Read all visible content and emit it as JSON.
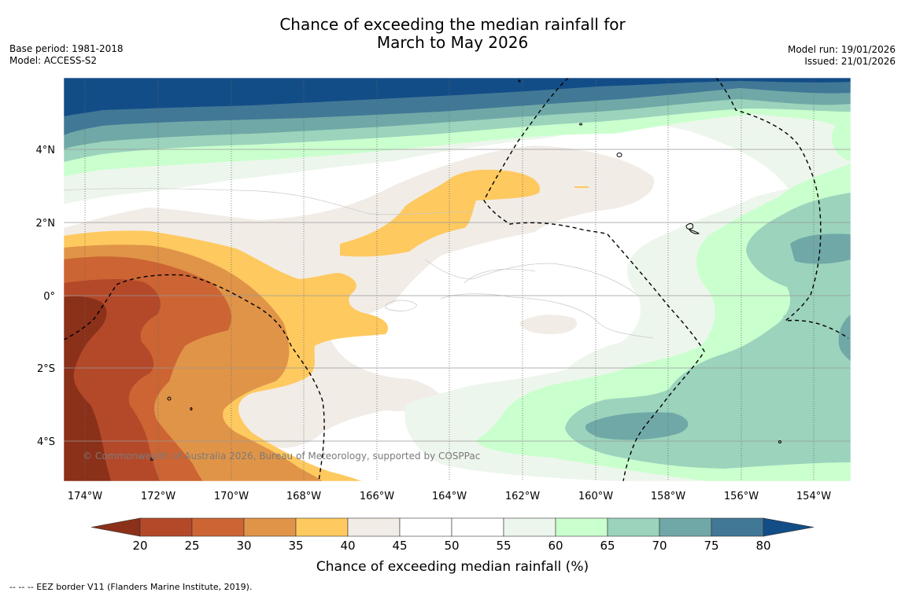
{
  "title": {
    "line1": "Chance of exceeding the median rainfall for",
    "line2": "March to May 2026"
  },
  "meta_left": {
    "base_period": "Base period: 1981-2018",
    "model": "Model: ACCESS-S2"
  },
  "meta_right": {
    "model_run": "Model run: 19/01/2026",
    "issued": "Issued: 21/01/2026"
  },
  "map": {
    "lon_ticks": [
      "174°W",
      "172°W",
      "170°W",
      "168°W",
      "166°W",
      "164°W",
      "162°W",
      "160°W",
      "158°W",
      "156°W",
      "154°W"
    ],
    "lat_ticks": [
      "4°N",
      "2°N",
      "0°",
      "2°S",
      "4°S"
    ],
    "copyright": "© Commonwealth of Australia 2026, Bureau of Meteorology, supported by COSPPac"
  },
  "colorbar": {
    "levels": [
      "20",
      "25",
      "30",
      "35",
      "40",
      "45",
      "50",
      "55",
      "60",
      "65",
      "70",
      "75",
      "80"
    ],
    "colors": {
      "below_20": "#8b3019",
      "20_25": "#b4492a",
      "25_30": "#cc6533",
      "30_35": "#e09448",
      "35_40": "#fec95f",
      "40_45": "#f1ece6",
      "45_50": "#ffffff",
      "50_55": "#ffffff",
      "55_60": "#edf6ec",
      "60_65": "#caffce",
      "65_70": "#9bd3bc",
      "70_75": "#70a8a7",
      "75_80": "#417896",
      "above_80": "#134d87"
    },
    "title": "Chance of exceeding median rainfall (%)"
  },
  "footnote": "--  --  -- EEZ border V11 (Flanders Marine Institute, 2019)."
}
